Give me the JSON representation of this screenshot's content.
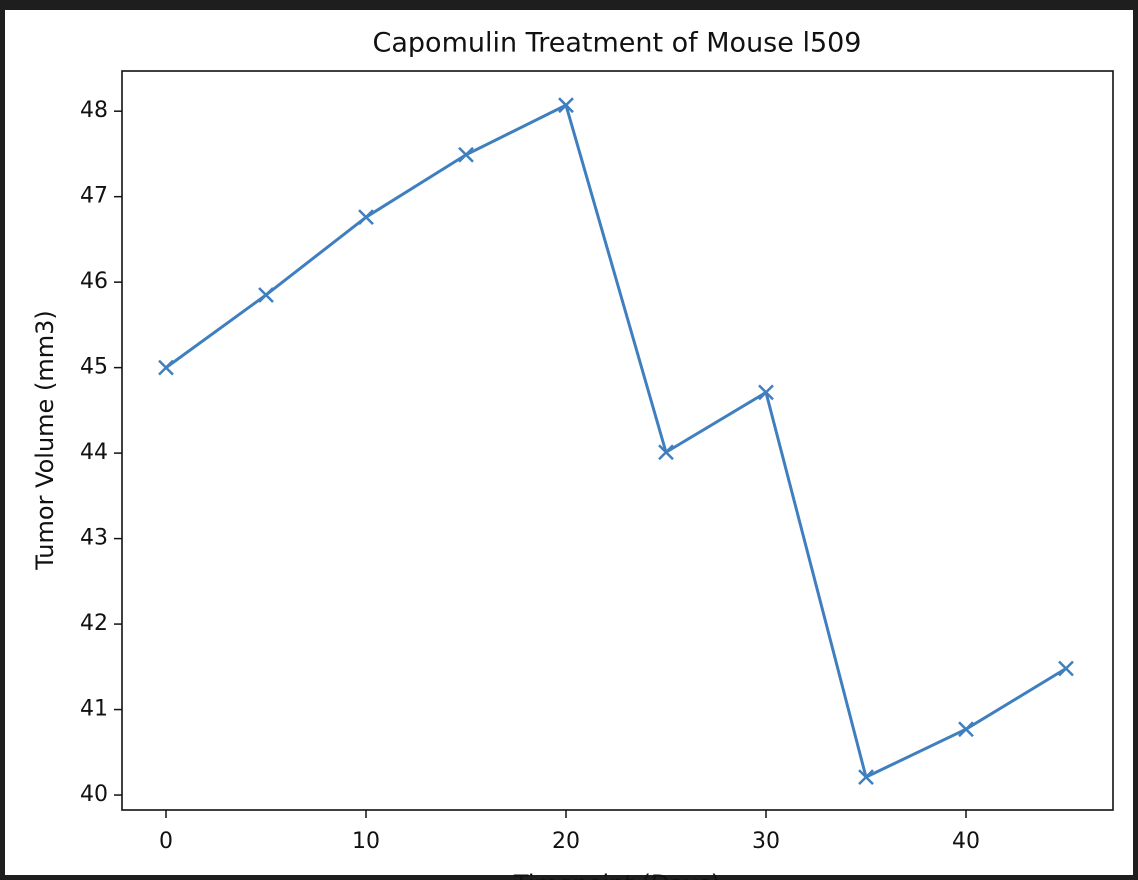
{
  "chart_data": {
    "type": "line",
    "title": "Capomulin Treatment of Mouse l509",
    "xlabel": "Timepoint (Days)",
    "ylabel": "Tumor Volume (mm3)",
    "x": [
      0,
      5,
      10,
      15,
      20,
      25,
      30,
      35,
      40,
      45
    ],
    "series": [
      {
        "color": "#3f7fbf",
        "marker": "x",
        "values": [
          45,
          45.85,
          46.76,
          47.49,
          48.07,
          44.01,
          44.71,
          40.21,
          40.77,
          41.48
        ]
      }
    ],
    "xlim": [
      -2.2,
      47.35
    ],
    "ylim": [
      39.825,
      48.47
    ],
    "xticks": [
      0,
      10,
      20,
      30,
      40
    ],
    "yticks": [
      40,
      41,
      42,
      43,
      44,
      45,
      46,
      47,
      48
    ],
    "grid": false
  }
}
